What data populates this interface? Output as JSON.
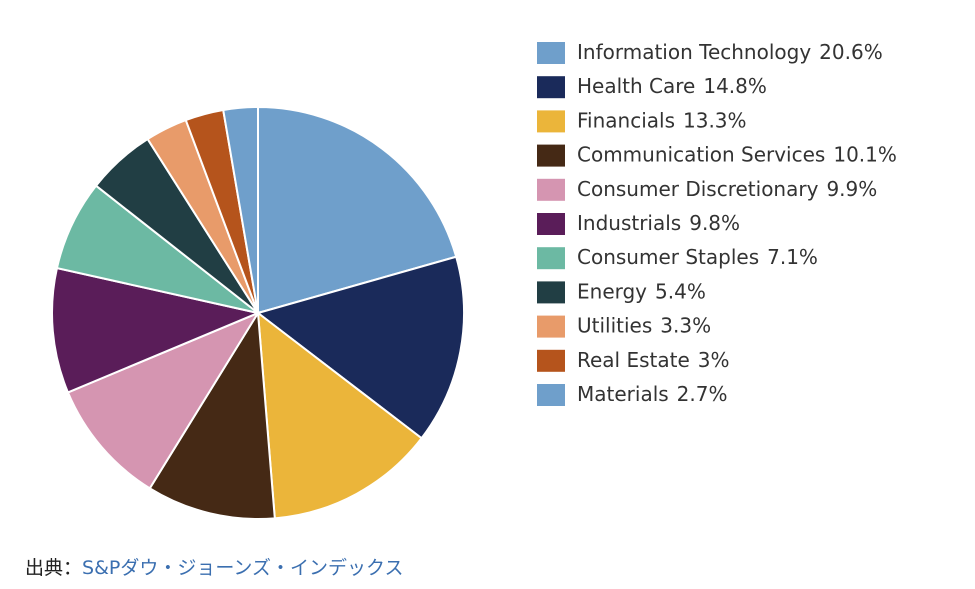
{
  "chart_data": {
    "type": "pie",
    "categories": [
      "Information Technology",
      "Health Care",
      "Financials",
      "Communication Services",
      "Consumer Discretionary",
      "Industrials",
      "Consumer Staples",
      "Energy",
      "Utilities",
      "Real Estate",
      "Materials"
    ],
    "values": [
      20.6,
      14.8,
      13.3,
      10.1,
      9.9,
      9.8,
      7.1,
      5.4,
      3.3,
      3,
      2.7
    ],
    "value_labels": [
      "20.6%",
      "14.8%",
      "13.3%",
      "10.1%",
      "9.9%",
      "9.8%",
      "7.1%",
      "5.4%",
      "3.3%",
      "3%",
      "2.7%"
    ],
    "colors": [
      "#6f9fcb",
      "#1a2a5a",
      "#ebb53a",
      "#452915",
      "#d595b1",
      "#5a1d59",
      "#6cb9a3",
      "#213e44",
      "#e89b6a",
      "#b5541c",
      "#6f9fcb"
    ]
  },
  "source": {
    "prefix": "出典：",
    "link": "S&Pダウ・ジョーンズ・インデックス"
  }
}
